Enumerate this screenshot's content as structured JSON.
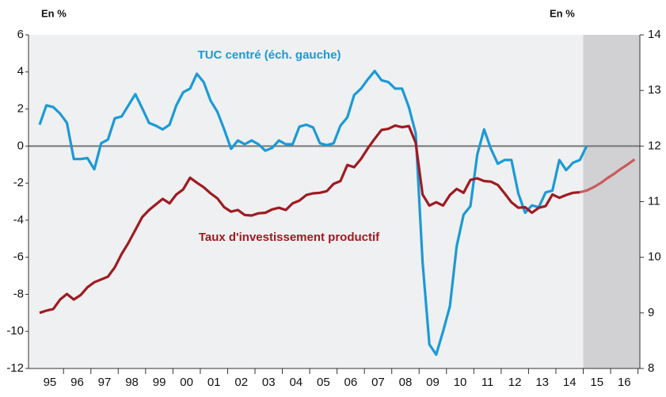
{
  "chart_data": {
    "type": "line",
    "annotations": [
      "En %",
      "En %"
    ],
    "x": [
      1995.125,
      1995.375,
      1995.625,
      1995.875,
      1996.125,
      1996.375,
      1996.625,
      1996.875,
      1997.125,
      1997.375,
      1997.625,
      1997.875,
      1998.125,
      1998.375,
      1998.625,
      1998.875,
      1999.125,
      1999.375,
      1999.625,
      1999.875,
      2000.125,
      2000.375,
      2000.625,
      2000.875,
      2001.125,
      2001.375,
      2001.625,
      2001.875,
      2002.125,
      2002.375,
      2002.625,
      2002.875,
      2003.125,
      2003.375,
      2003.625,
      2003.875,
      2004.125,
      2004.375,
      2004.625,
      2004.875,
      2005.125,
      2005.375,
      2005.625,
      2005.875,
      2006.125,
      2006.375,
      2006.625,
      2006.875,
      2007.125,
      2007.375,
      2007.625,
      2007.875,
      2008.125,
      2008.375,
      2008.625,
      2008.875,
      2009.125,
      2009.375,
      2009.625,
      2009.875,
      2010.125,
      2010.375,
      2010.625,
      2010.875,
      2011.125,
      2011.375,
      2011.625,
      2011.875,
      2012.125,
      2012.375,
      2012.625,
      2012.875,
      2013.125,
      2013.375,
      2013.625,
      2013.875,
      2014.125,
      2014.375,
      2014.625,
      2014.875,
      2015.125,
      2015.375,
      2015.625,
      2015.875,
      2016.125,
      2016.375,
      2016.625,
      2016.875
    ],
    "series": [
      {
        "name": "TUC centré (éch. gauche)",
        "color": "#1b9ad6",
        "axis": "y",
        "values": [
          1.15,
          2.2,
          2.1,
          1.75,
          1.25,
          -0.7,
          -0.7,
          -0.65,
          -1.25,
          0.15,
          0.35,
          1.5,
          1.6,
          2.2,
          2.8,
          2.05,
          1.25,
          1.1,
          0.9,
          1.15,
          2.2,
          2.9,
          3.1,
          3.9,
          3.45,
          2.45,
          1.85,
          0.9,
          -0.15,
          0.3,
          0.1,
          0.3,
          0.1,
          -0.25,
          -0.1,
          0.3,
          0.1,
          0.1,
          1.05,
          1.15,
          1.0,
          0.15,
          0.05,
          0.15,
          1.1,
          1.55,
          2.75,
          3.1,
          3.6,
          4.05,
          3.55,
          3.45,
          3.1,
          3.1,
          2.1,
          0.7,
          -6.25,
          -10.7,
          -11.25,
          -10.0,
          -8.65,
          -5.4,
          -3.7,
          -3.25,
          -0.45,
          0.9,
          -0.15,
          -0.95,
          -0.75,
          -0.75,
          -2.55,
          -3.6,
          -3.2,
          -3.3,
          -2.5,
          -2.4,
          -0.75,
          -1.3,
          -0.9,
          -0.75,
          0.0,
          null,
          null,
          null,
          null,
          null,
          null,
          null
        ]
      },
      {
        "name": "Taux d'investissement productif",
        "color": "#9e1b22",
        "axis": "y2",
        "values": [
          9.0,
          9.04,
          9.07,
          9.24,
          9.34,
          9.24,
          9.32,
          9.46,
          9.55,
          9.6,
          9.65,
          9.82,
          10.06,
          10.26,
          10.49,
          10.72,
          10.85,
          10.95,
          11.05,
          10.97,
          11.13,
          11.22,
          11.43,
          11.34,
          11.26,
          11.15,
          11.06,
          10.9,
          10.82,
          10.85,
          10.76,
          10.75,
          10.79,
          10.8,
          10.86,
          10.89,
          10.85,
          10.97,
          11.02,
          11.12,
          11.15,
          11.16,
          11.19,
          11.32,
          11.37,
          11.66,
          11.62,
          11.77,
          11.96,
          12.13,
          12.29,
          12.31,
          12.37,
          12.34,
          12.36,
          12.06,
          11.13,
          10.93,
          10.99,
          10.93,
          11.12,
          11.23,
          11.16,
          11.39,
          11.42,
          11.37,
          11.36,
          11.3,
          11.15,
          10.99,
          10.89,
          10.9,
          10.8,
          10.89,
          10.92,
          11.13,
          11.07,
          11.12,
          11.16,
          11.17,
          null,
          null,
          null,
          null,
          null,
          null,
          null,
          null
        ]
      },
      {
        "color": "#c95b5e",
        "axis": "y2",
        "values": [
          null,
          null,
          null,
          null,
          null,
          null,
          null,
          null,
          null,
          null,
          null,
          null,
          null,
          null,
          null,
          null,
          null,
          null,
          null,
          null,
          null,
          null,
          null,
          null,
          null,
          null,
          null,
          null,
          null,
          null,
          null,
          null,
          null,
          null,
          null,
          null,
          null,
          null,
          null,
          null,
          null,
          null,
          null,
          null,
          null,
          null,
          null,
          null,
          null,
          null,
          null,
          null,
          null,
          null,
          null,
          null,
          null,
          null,
          null,
          null,
          null,
          null,
          null,
          null,
          null,
          null,
          null,
          null,
          null,
          null,
          null,
          null,
          null,
          null,
          null,
          null,
          null,
          null,
          null,
          11.17,
          11.2,
          11.26,
          11.33,
          11.42,
          11.5,
          11.59,
          11.67,
          11.76
        ]
      }
    ],
    "xlim": [
      1994.72,
      2017.07
    ],
    "xticks": [
      {
        "value": 1995.5,
        "label": "95"
      },
      {
        "value": 1996.5,
        "label": "96"
      },
      {
        "value": 1997.5,
        "label": "97"
      },
      {
        "value": 1998.5,
        "label": "98"
      },
      {
        "value": 1999.5,
        "label": "99"
      },
      {
        "value": 2000.5,
        "label": "00"
      },
      {
        "value": 2001.5,
        "label": "01"
      },
      {
        "value": 2002.5,
        "label": "02"
      },
      {
        "value": 2003.5,
        "label": "03"
      },
      {
        "value": 2004.5,
        "label": "04"
      },
      {
        "value": 2005.5,
        "label": "05"
      },
      {
        "value": 2006.5,
        "label": "06"
      },
      {
        "value": 2007.5,
        "label": "07"
      },
      {
        "value": 2008.5,
        "label": "08"
      },
      {
        "value": 2009.5,
        "label": "09"
      },
      {
        "value": 2010.5,
        "label": "10"
      },
      {
        "value": 2011.5,
        "label": "11"
      },
      {
        "value": 2012.5,
        "label": "12"
      },
      {
        "value": 2013.5,
        "label": "13"
      },
      {
        "value": 2014.5,
        "label": "14"
      },
      {
        "value": 2015.5,
        "label": "15"
      },
      {
        "value": 2016.5,
        "label": "16"
      }
    ],
    "ylim": [
      -12,
      6
    ],
    "yticks": [
      6,
      4,
      2,
      0,
      -2,
      -4,
      -6,
      -8,
      -10,
      -12
    ],
    "y2lim": [
      8,
      14
    ],
    "y2ticks": [
      14,
      13,
      12,
      11,
      10,
      9,
      8
    ],
    "shaded_from": 2015,
    "shade_color": "#d1d1d3",
    "background": "#eff0f1"
  }
}
